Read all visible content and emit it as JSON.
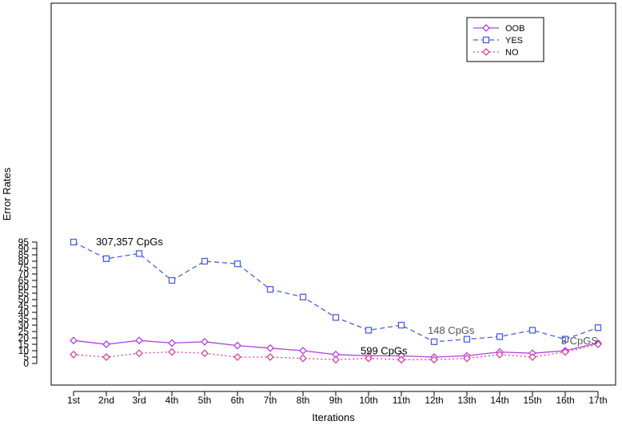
{
  "chart_data": {
    "type": "line",
    "title": "",
    "xlabel": "Iterations",
    "ylabel": "Error Rates",
    "ylim": [
      0,
      95
    ],
    "yticks": [
      0,
      5,
      10,
      15,
      20,
      25,
      30,
      35,
      40,
      45,
      50,
      55,
      60,
      65,
      70,
      75,
      80,
      85,
      90,
      95
    ],
    "categories": [
      "1st",
      "2nd",
      "3rd",
      "4th",
      "5th",
      "6th",
      "7th",
      "8th",
      "9th",
      "10th",
      "11th",
      "12th",
      "13th",
      "14th",
      "15th",
      "16th",
      "17th"
    ],
    "grid": false,
    "legend_position": "top-right",
    "series": [
      {
        "name": "OOB",
        "color": "#b040e0",
        "line_style": "solid",
        "marker": "diamond",
        "values": [
          18,
          15,
          18,
          16,
          17,
          14,
          12,
          10,
          7,
          6,
          6,
          5,
          6,
          9,
          8,
          10,
          16
        ]
      },
      {
        "name": "YES",
        "color": "#4a5fe0",
        "line_style": "dashed",
        "marker": "square",
        "values": [
          95,
          82,
          86,
          65,
          80,
          78,
          58,
          52,
          36,
          26,
          30,
          17,
          19,
          21,
          26,
          19,
          28
        ]
      },
      {
        "name": "NO",
        "color": "#e040a0",
        "line_style": "dotted",
        "marker": "diamond",
        "values": [
          7,
          5,
          8,
          9,
          8,
          5,
          5,
          4,
          3,
          4,
          3,
          3,
          4,
          7,
          5,
          9,
          15
        ]
      }
    ],
    "annotations": [
      {
        "text": "307,357 CpGs",
        "category": "1st",
        "y": 95,
        "color": "#000000"
      },
      {
        "text": "599 CpGs",
        "category": "10th",
        "y": 26,
        "color": "#000000"
      },
      {
        "text": "148 CpGs",
        "category": "12th",
        "y": 17,
        "color": "#555555"
      },
      {
        "text": "3 CpGS",
        "category": "17th",
        "y": 28,
        "color": "#555555"
      }
    ]
  }
}
